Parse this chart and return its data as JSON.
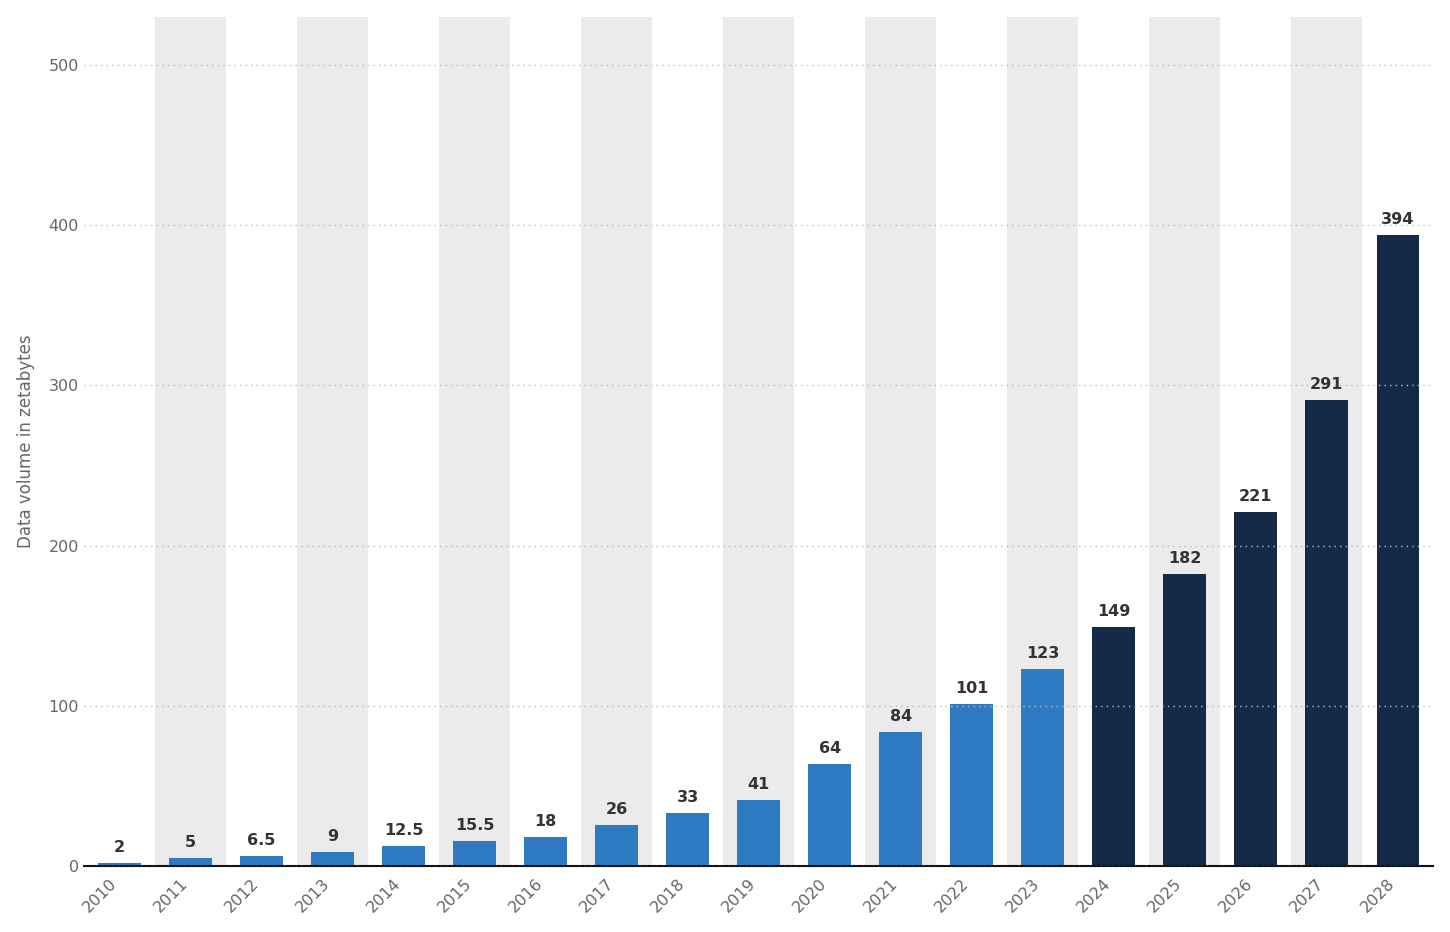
{
  "years": [
    2010,
    2011,
    2012,
    2013,
    2014,
    2015,
    2016,
    2017,
    2018,
    2019,
    2020,
    2021,
    2022,
    2023,
    2024,
    2025,
    2026,
    2027,
    2028
  ],
  "values": [
    2,
    5,
    6.5,
    9,
    12.5,
    15.5,
    18,
    26,
    33,
    41,
    64,
    84,
    101,
    123,
    149,
    182,
    221,
    291,
    394
  ],
  "bar_colors": [
    "#2e7bc4",
    "#2e7bc4",
    "#2e7bc4",
    "#2e7bc4",
    "#2e7bc4",
    "#2e7bc4",
    "#2e7bc4",
    "#2e7bc4",
    "#2e7bc4",
    "#2e7bc4",
    "#2e7bc4",
    "#2e7bc4",
    "#2e7bc4",
    "#2e7bc4",
    "#152a47",
    "#152a47",
    "#152a47",
    "#152a47",
    "#152a47"
  ],
  "col_band_colors": [
    "#ffffff",
    "#ebebeb"
  ],
  "ylabel": "Data volume in zetabytes",
  "ylim": [
    0,
    530
  ],
  "yticks": [
    0,
    100,
    200,
    300,
    400,
    500
  ],
  "background_color": "#ffffff",
  "plot_area_color": "#ffffff",
  "grid_color": "#bbbbbb",
  "label_color": "#333333",
  "label_fontsize": 11.5,
  "axis_label_fontsize": 12,
  "tick_fontsize": 11.5,
  "bar_width": 0.6
}
